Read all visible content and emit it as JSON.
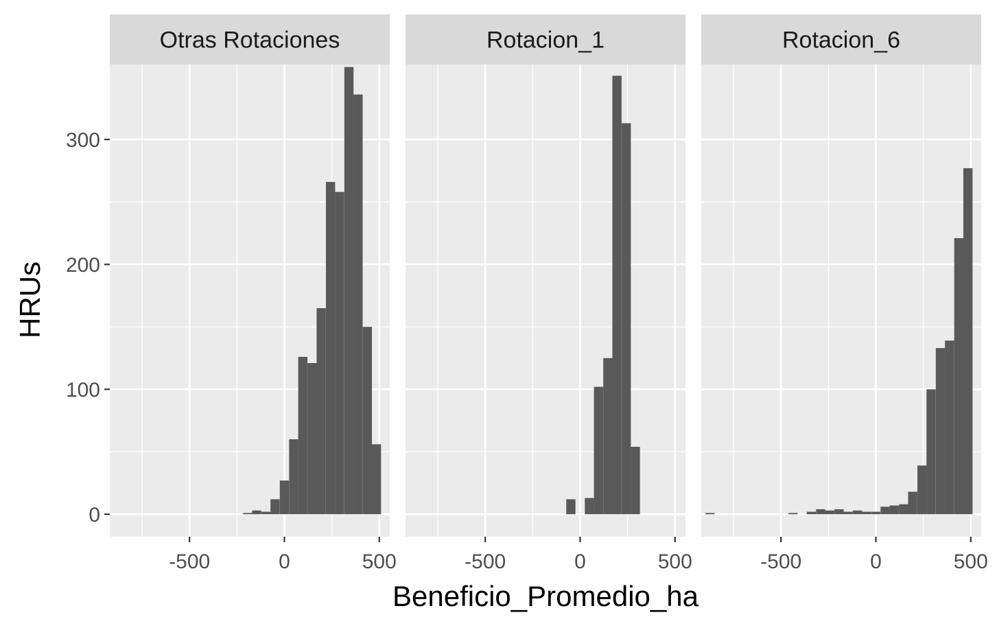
{
  "chart_data": {
    "type": "bar",
    "xlabel": "Beneficio_Promedio_ha",
    "ylabel": "HRUs",
    "xlim": [
      -920,
      555
    ],
    "ylim": [
      -18,
      360
    ],
    "x_ticks": [
      -500,
      0,
      500
    ],
    "x_tick_labels": [
      "-500",
      "0",
      "500"
    ],
    "y_ticks": [
      0,
      100,
      200,
      300
    ],
    "y_tick_labels": [
      "0",
      "100",
      "200",
      "300"
    ],
    "bin_width": 48.5,
    "grid": true,
    "colors": {
      "bar": "#595959",
      "panel": "#ebebeb",
      "grid": "#ffffff",
      "strip": "#d9d9d9"
    },
    "panels": [
      {
        "title": "Otras Rotaciones",
        "bins": [
          {
            "x": -194,
            "count": 1
          },
          {
            "x": -146,
            "count": 3
          },
          {
            "x": -97,
            "count": 2
          },
          {
            "x": -49,
            "count": 12
          },
          {
            "x": 0,
            "count": 27
          },
          {
            "x": 49,
            "count": 60
          },
          {
            "x": 97,
            "count": 126
          },
          {
            "x": 146,
            "count": 121
          },
          {
            "x": 194,
            "count": 165
          },
          {
            "x": 243,
            "count": 266
          },
          {
            "x": 291,
            "count": 258
          },
          {
            "x": 340,
            "count": 358
          },
          {
            "x": 388,
            "count": 336
          },
          {
            "x": 437,
            "count": 150
          },
          {
            "x": 485,
            "count": 56
          }
        ]
      },
      {
        "title": "Rotacion_1",
        "bins": [
          {
            "x": -49,
            "count": 12
          },
          {
            "x": 49,
            "count": 13
          },
          {
            "x": 97,
            "count": 102
          },
          {
            "x": 146,
            "count": 125
          },
          {
            "x": 194,
            "count": 351
          },
          {
            "x": 243,
            "count": 313
          },
          {
            "x": 291,
            "count": 54
          }
        ]
      },
      {
        "title": "Rotacion_6",
        "bins": [
          {
            "x": -874,
            "count": 1
          },
          {
            "x": -437,
            "count": 1
          },
          {
            "x": -340,
            "count": 2
          },
          {
            "x": -291,
            "count": 4
          },
          {
            "x": -243,
            "count": 3
          },
          {
            "x": -194,
            "count": 4
          },
          {
            "x": -146,
            "count": 2
          },
          {
            "x": -97,
            "count": 3
          },
          {
            "x": -49,
            "count": 2
          },
          {
            "x": 0,
            "count": 2
          },
          {
            "x": 49,
            "count": 6
          },
          {
            "x": 97,
            "count": 7
          },
          {
            "x": 146,
            "count": 8
          },
          {
            "x": 194,
            "count": 18
          },
          {
            "x": 243,
            "count": 39
          },
          {
            "x": 291,
            "count": 100
          },
          {
            "x": 340,
            "count": 133
          },
          {
            "x": 388,
            "count": 139
          },
          {
            "x": 437,
            "count": 221
          },
          {
            "x": 485,
            "count": 277
          }
        ]
      }
    ]
  }
}
